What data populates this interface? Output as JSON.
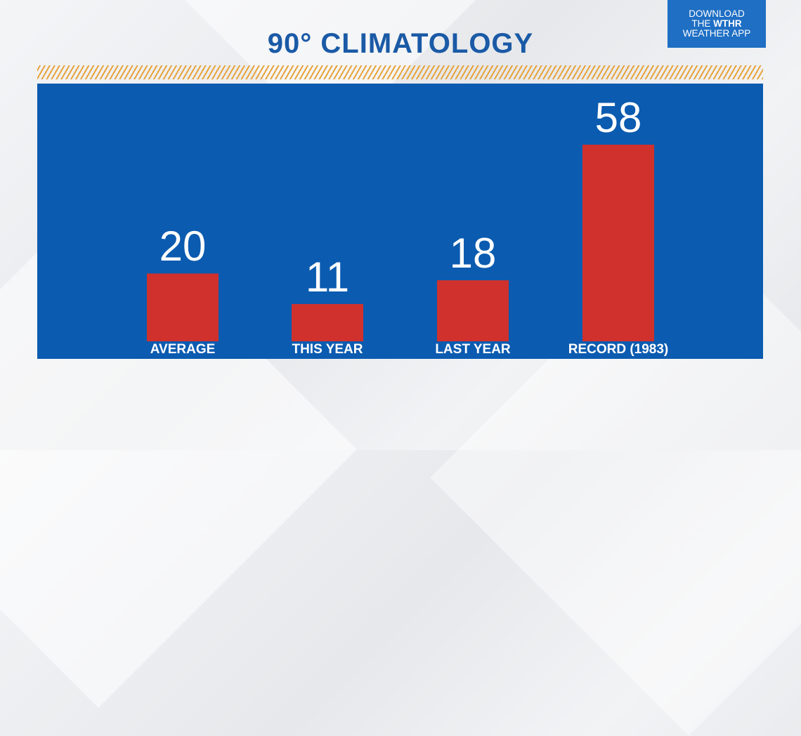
{
  "header": {
    "title": "90° CLIMATOLOGY",
    "title_color": "#1a5aa6"
  },
  "app_badge": {
    "line1": "DOWNLOAD",
    "line2_prefix": "THE ",
    "line2_brand": "WTHR",
    "line3": "WEATHER APP",
    "background": "#1f6fc4"
  },
  "colors": {
    "panel": "#0b5bb0",
    "bar": "#d0312d",
    "hatch": "#e8a33a"
  },
  "chart_data": {
    "type": "bar",
    "title": "90° CLIMATOLOGY",
    "categories": [
      "AVERAGE",
      "THIS YEAR",
      "LAST YEAR",
      "RECORD (1983)"
    ],
    "values": [
      20,
      11,
      18,
      58
    ],
    "data_labels": [
      "20",
      "11",
      "18",
      "58"
    ],
    "xlabel": "",
    "ylabel": "",
    "ylim": [
      0,
      58
    ],
    "grid": false,
    "legend": "none"
  }
}
